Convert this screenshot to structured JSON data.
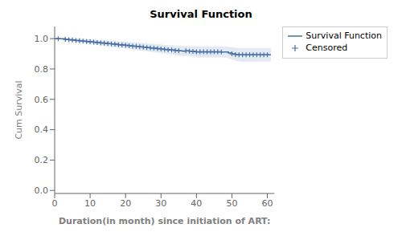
{
  "chart_data": {
    "type": "step",
    "title": "Survival Function",
    "xlabel": "Duration(in month) since initiation of ART:",
    "ylabel": "Cum Survival",
    "xlim": [
      0,
      62
    ],
    "ylim": [
      -0.02,
      1.08
    ],
    "xticks": [
      0,
      10,
      20,
      30,
      40,
      50,
      60
    ],
    "yticks": [
      {
        "value": 0.0,
        "label": "0.0"
      },
      0.2,
      0.4,
      0.6,
      0.8,
      {
        "value": 1.0,
        "label": "1.0"
      }
    ],
    "grid": false,
    "legend": "right",
    "x": [
      0,
      1,
      2,
      3,
      4,
      5,
      6,
      7,
      8,
      9,
      10,
      11,
      12,
      13,
      14,
      15,
      16,
      17,
      18,
      19,
      20,
      21,
      22,
      23,
      24,
      25,
      26,
      27,
      28,
      29,
      30,
      31,
      32,
      33,
      34,
      35,
      36,
      37,
      38,
      39,
      40,
      41,
      42,
      43,
      44,
      45,
      46,
      47,
      48,
      49,
      50,
      51,
      52,
      53,
      54,
      55,
      56,
      57,
      58,
      59,
      60,
      61
    ],
    "series": [
      {
        "name": "Survival Function",
        "type": "step",
        "color": "#4a6fa5",
        "values": [
          1.0,
          1.0,
          1.0,
          0.995,
          0.993,
          0.991,
          0.988,
          0.986,
          0.984,
          0.981,
          0.979,
          0.977,
          0.974,
          0.972,
          0.97,
          0.967,
          0.965,
          0.963,
          0.96,
          0.958,
          0.956,
          0.953,
          0.951,
          0.949,
          0.946,
          0.944,
          0.941,
          0.939,
          0.937,
          0.934,
          0.932,
          0.929,
          0.927,
          0.925,
          0.922,
          0.92,
          0.918,
          0.92,
          0.918,
          0.916,
          0.913,
          0.913,
          0.913,
          0.913,
          0.913,
          0.913,
          0.913,
          0.912,
          0.912,
          0.905,
          0.9,
          0.895,
          0.893,
          0.893,
          0.893,
          0.893,
          0.893,
          0.893,
          0.893,
          0.893,
          0.893,
          0.893
        ],
        "lower": [
          1.0,
          1.0,
          1.0,
          0.985,
          0.982,
          0.979,
          0.975,
          0.972,
          0.969,
          0.966,
          0.963,
          0.96,
          0.957,
          0.954,
          0.951,
          0.948,
          0.945,
          0.942,
          0.939,
          0.936,
          0.933,
          0.93,
          0.927,
          0.924,
          0.921,
          0.918,
          0.915,
          0.912,
          0.909,
          0.906,
          0.903,
          0.899,
          0.897,
          0.894,
          0.89,
          0.887,
          0.884,
          0.887,
          0.884,
          0.881,
          0.877,
          0.877,
          0.877,
          0.877,
          0.877,
          0.877,
          0.877,
          0.875,
          0.875,
          0.866,
          0.858,
          0.851,
          0.848,
          0.848,
          0.848,
          0.848,
          0.848,
          0.848,
          0.848,
          0.848,
          0.848,
          0.848
        ],
        "upper": [
          1.0,
          1.0,
          1.0,
          1.0,
          1.0,
          1.0,
          1.0,
          1.0,
          1.0,
          0.997,
          0.995,
          0.994,
          0.992,
          0.99,
          0.989,
          0.987,
          0.985,
          0.984,
          0.982,
          0.98,
          0.979,
          0.977,
          0.975,
          0.974,
          0.972,
          0.97,
          0.968,
          0.966,
          0.965,
          0.963,
          0.961,
          0.959,
          0.957,
          0.956,
          0.954,
          0.952,
          0.951,
          0.952,
          0.951,
          0.95,
          0.949,
          0.949,
          0.949,
          0.949,
          0.949,
          0.949,
          0.949,
          0.949,
          0.949,
          0.944,
          0.942,
          0.939,
          0.939,
          0.939,
          0.939,
          0.939,
          0.939,
          0.939,
          0.939,
          0.939,
          0.939,
          0.939
        ]
      },
      {
        "name": "Censored",
        "type": "scatter",
        "marker": "plus",
        "color": "#4a6fa5",
        "x": [
          1,
          3,
          4,
          5,
          6,
          7,
          8,
          9,
          10,
          11,
          12,
          13,
          14,
          15,
          16,
          17,
          18,
          19,
          20,
          21,
          22,
          23,
          24,
          25,
          26,
          27,
          28,
          29,
          30,
          31,
          32,
          33,
          34,
          35,
          37,
          38,
          39,
          40,
          41,
          42,
          43,
          44,
          45,
          46,
          47,
          50,
          51,
          52,
          53,
          54,
          55,
          56,
          57,
          58,
          59,
          60
        ],
        "values": [
          1.0,
          0.995,
          0.993,
          0.991,
          0.988,
          0.986,
          0.984,
          0.981,
          0.979,
          0.977,
          0.974,
          0.972,
          0.97,
          0.967,
          0.965,
          0.963,
          0.96,
          0.958,
          0.956,
          0.953,
          0.951,
          0.949,
          0.946,
          0.944,
          0.941,
          0.939,
          0.937,
          0.934,
          0.932,
          0.929,
          0.927,
          0.925,
          0.922,
          0.92,
          0.92,
          0.918,
          0.916,
          0.913,
          0.913,
          0.913,
          0.913,
          0.913,
          0.913,
          0.913,
          0.912,
          0.9,
          0.895,
          0.893,
          0.893,
          0.893,
          0.893,
          0.893,
          0.893,
          0.893,
          0.893,
          0.893
        ]
      }
    ]
  }
}
